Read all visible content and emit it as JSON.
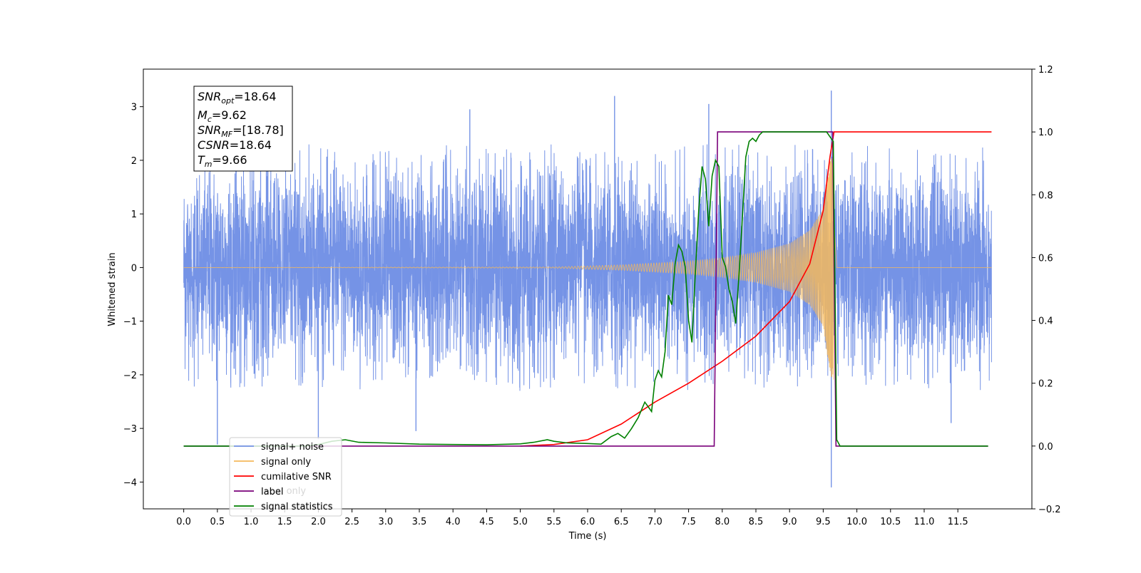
{
  "chart_data": {
    "type": "line",
    "xlabel": "Time (s)",
    "ylabel_left": "Whitened strain",
    "ylabel_right": "",
    "xlim": [
      -0.6,
      12.6
    ],
    "ylim_left": [
      -4.5,
      3.7
    ],
    "ylim_right": [
      -0.2,
      1.2
    ],
    "x_ticks": [
      0.0,
      0.5,
      1.0,
      1.5,
      2.0,
      2.5,
      3.0,
      3.5,
      4.0,
      4.5,
      5.0,
      5.5,
      6.0,
      6.5,
      7.0,
      7.5,
      8.0,
      8.5,
      9.0,
      9.5,
      10.0,
      10.5,
      11.0,
      11.5
    ],
    "x_tick_labels": [
      "0.0",
      "0.5",
      "1.0",
      "1.5",
      "2.0",
      "2.5",
      "3.0",
      "3.5",
      "4.0",
      "4.5",
      "5.0",
      "5.5",
      "6.0",
      "6.5",
      "7.0",
      "7.5",
      "8.0",
      "8.5",
      "9.0",
      "9.5",
      "10.0",
      "10.5",
      "11.0",
      "11.5"
    ],
    "y_left_ticks": [
      3,
      2,
      1,
      0,
      -1,
      -2,
      -3,
      -4
    ],
    "y_left_tick_labels": [
      "3",
      "2",
      "1",
      "0",
      "−1",
      "−2",
      "−3",
      "−4"
    ],
    "y_right_ticks": [
      1.2,
      1.0,
      0.8,
      0.6,
      0.4,
      0.2,
      0.0,
      -0.2
    ],
    "y_right_tick_labels": [
      "1.2",
      "1.0",
      "0.8",
      "0.6",
      "0.4",
      "0.2",
      "0.0",
      "−0.2"
    ],
    "grid": false,
    "legend_location": "lower-left",
    "stats": {
      "snr_opt": {
        "base": "SNR",
        "sub": "opt",
        "value": "=18.64"
      },
      "mc": {
        "base": "M",
        "sub": "c",
        "value": "=9.62"
      },
      "snr_mf": {
        "base": "SNR",
        "sub": "MF",
        "value": "=[18.78]"
      },
      "csnr": {
        "base": "CSNR",
        "sub": "",
        "value": "=18.64"
      },
      "tm": {
        "base": "T",
        "sub": "m",
        "value": "=9.66"
      }
    },
    "series": [
      {
        "name": "signal+ noise",
        "axis": "left",
        "color": "#7593e6",
        "description": "noisy whitened strain, x from 0 to 12, amplitude roughly within ±2.3 with spikes to ±3.3",
        "x_range": [
          0.0,
          12.0
        ],
        "amplitude_envelope": [
          -2.3,
          2.3
        ],
        "spikes": [
          {
            "x": 0.5,
            "y": -3.3
          },
          {
            "x": 2.0,
            "y": -3.2
          },
          {
            "x": 3.45,
            "y": -3.05
          },
          {
            "x": 7.8,
            "y": 3.05
          },
          {
            "x": 6.4,
            "y": 3.2
          },
          {
            "x": 4.25,
            "y": 2.95
          },
          {
            "x": 9.62,
            "y": 3.3
          },
          {
            "x": 9.62,
            "y": -4.1
          },
          {
            "x": 11.4,
            "y": -2.9
          }
        ]
      },
      {
        "name": "signal only",
        "axis": "left",
        "color": "#f5b85c",
        "description": "chirp signal growing in amplitude from ~5.5 s to merger at ~9.66 s",
        "envelope_x": [
          0.0,
          5.5,
          6.5,
          7.5,
          8.0,
          8.5,
          9.0,
          9.3,
          9.5,
          9.6,
          9.66,
          9.7,
          12.0
        ],
        "envelope_y": [
          0.0,
          0.01,
          0.05,
          0.12,
          0.18,
          0.28,
          0.45,
          0.7,
          1.1,
          2.0,
          2.1,
          0.0,
          0.0
        ]
      },
      {
        "name": "cumilative SNR",
        "axis": "right",
        "color": "#ff0000",
        "x": [
          5.0,
          5.5,
          6.0,
          6.5,
          7.0,
          7.5,
          8.0,
          8.5,
          9.0,
          9.3,
          9.5,
          9.6,
          9.66,
          12.0
        ],
        "y": [
          0.0,
          0.005,
          0.02,
          0.07,
          0.14,
          0.2,
          0.27,
          0.35,
          0.46,
          0.58,
          0.75,
          0.92,
          1.0,
          1.0
        ]
      },
      {
        "name": "label",
        "axis": "right",
        "color": "#7a007a",
        "x": [
          0.0,
          7.88,
          7.93,
          9.64,
          9.69,
          11.95
        ],
        "y": [
          0.0,
          0.0,
          1.0,
          1.0,
          0.0,
          0.0
        ]
      },
      {
        "name": "signal statistics",
        "axis": "right",
        "color": "#008000",
        "x": [
          0.0,
          1.8,
          2.0,
          2.2,
          2.4,
          2.6,
          3.0,
          3.5,
          4.0,
          4.5,
          5.0,
          5.2,
          5.4,
          5.5,
          5.7,
          6.0,
          6.2,
          6.35,
          6.45,
          6.55,
          6.65,
          6.75,
          6.85,
          6.95,
          7.0,
          7.05,
          7.1,
          7.15,
          7.2,
          7.25,
          7.3,
          7.35,
          7.4,
          7.45,
          7.5,
          7.55,
          7.6,
          7.65,
          7.7,
          7.75,
          7.8,
          7.85,
          7.9,
          7.95,
          8.0,
          8.05,
          8.1,
          8.15,
          8.2,
          8.25,
          8.3,
          8.35,
          8.4,
          8.45,
          8.5,
          8.55,
          8.6,
          8.7,
          8.8,
          8.9,
          9.0,
          9.2,
          9.4,
          9.55,
          9.6,
          9.65,
          9.7,
          9.75,
          11.95
        ],
        "y": [
          0.0,
          0.0,
          0.005,
          0.015,
          0.02,
          0.012,
          0.01,
          0.006,
          0.005,
          0.004,
          0.007,
          0.012,
          0.02,
          0.015,
          0.01,
          0.008,
          0.006,
          0.03,
          0.04,
          0.025,
          0.055,
          0.09,
          0.14,
          0.11,
          0.21,
          0.24,
          0.22,
          0.3,
          0.48,
          0.45,
          0.58,
          0.64,
          0.62,
          0.57,
          0.4,
          0.33,
          0.55,
          0.75,
          0.89,
          0.85,
          0.7,
          0.86,
          0.91,
          0.89,
          0.6,
          0.57,
          0.5,
          0.46,
          0.39,
          0.55,
          0.73,
          0.92,
          0.97,
          0.98,
          0.97,
          0.99,
          1.0,
          1.0,
          1.0,
          1.0,
          1.0,
          1.0,
          1.0,
          1.0,
          0.985,
          0.97,
          0.02,
          0.0,
          0.0
        ]
      }
    ],
    "legend_entries": [
      {
        "label": "signal+ noise",
        "color": "#7593e6"
      },
      {
        "label": "signal only",
        "color": "#f5b85c"
      },
      {
        "label": "cumilative SNR",
        "color": "#ff0000"
      },
      {
        "label": "label",
        "color": "#7a007a"
      },
      {
        "label": "signal statistics",
        "color": "#008000"
      }
    ],
    "legend_ghost_text": [
      "label only",
      "signal statistics"
    ]
  }
}
